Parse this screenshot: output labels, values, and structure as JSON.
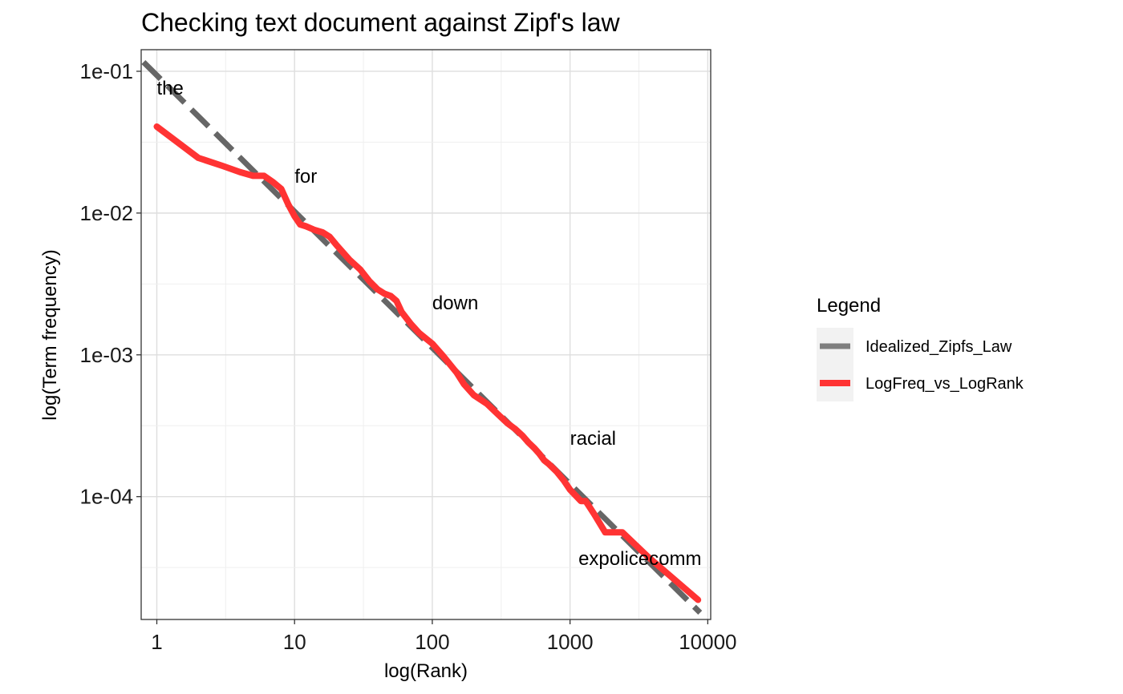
{
  "chart_data": {
    "type": "line",
    "title": "Checking text document against Zipf's law",
    "xlabel": "log(Rank)",
    "ylabel": "log(Term frequency)",
    "xscale": "log10",
    "yscale": "log10",
    "xlim": [
      0.77,
      10500
    ],
    "ylim": [
      1.36e-05,
      0.142
    ],
    "x_ticks": [
      1,
      10,
      100,
      1000,
      10000
    ],
    "x_tick_labels": [
      "1",
      "10",
      "100",
      "1000",
      "10000"
    ],
    "y_ticks": [
      0.0001,
      0.001,
      0.01,
      0.1
    ],
    "y_tick_labels": [
      "1e-04",
      "1e-03",
      "1e-02",
      "1e-01"
    ],
    "grid": true,
    "legend": {
      "title": "Legend",
      "position": "right",
      "entries": [
        {
          "label": "Idealized_Zipfs_Law",
          "color": "#7f7f7f",
          "style": "dashed"
        },
        {
          "label": "LogFreq_vs_LogRank",
          "color": "#ff3333",
          "style": "solid"
        }
      ]
    },
    "series": [
      {
        "name": "Idealized_Zipfs_Law",
        "color": "#666666",
        "style": "dashed",
        "x": [
          0.8,
          8800
        ],
        "y": [
          0.116,
          1.52e-05
        ]
      },
      {
        "name": "LogFreq_vs_LogRank",
        "color": "#ff3333",
        "style": "solid",
        "x": [
          1,
          2,
          3,
          4,
          5,
          6,
          7,
          8,
          9,
          10,
          11,
          12,
          14,
          16,
          18,
          20,
          25,
          30,
          35,
          40,
          45,
          50,
          55,
          60,
          70,
          80,
          100,
          120,
          150,
          170,
          200,
          250,
          300,
          350,
          400,
          450,
          500,
          550,
          600,
          650,
          700,
          800,
          900,
          1000,
          1200,
          1300,
          1500,
          1800,
          2400,
          3700,
          8500
        ],
        "y": [
          0.0407,
          0.0245,
          0.0215,
          0.0195,
          0.0183,
          0.0183,
          0.0165,
          0.0148,
          0.0115,
          0.0095,
          0.0083,
          0.0081,
          0.0076,
          0.0073,
          0.0068,
          0.006,
          0.0047,
          0.004,
          0.0033,
          0.0029,
          0.0027,
          0.0026,
          0.0024,
          0.002,
          0.00165,
          0.00143,
          0.0012,
          0.00098,
          0.00075,
          0.00062,
          0.00052,
          0.00045,
          0.00038,
          0.00033,
          0.0003,
          0.00027,
          0.00024,
          0.00022,
          0.0002,
          0.00018,
          0.00017,
          0.00015,
          0.00013,
          0.000112,
          9.3e-05,
          9.3e-05,
          7.5e-05,
          5.6e-05,
          5.6e-05,
          3.75e-05,
          1.87e-05
        ]
      }
    ],
    "annotations": [
      {
        "text": "the",
        "x": 1,
        "y": 0.076
      },
      {
        "text": "for",
        "x": 10,
        "y": 0.0182
      },
      {
        "text": "down",
        "x": 100,
        "y": 0.00232
      },
      {
        "text": "racial",
        "x": 1000,
        "y": 0.000257
      },
      {
        "text": "expolicecomm",
        "x": 1150,
        "y": 3.65e-05
      }
    ]
  }
}
